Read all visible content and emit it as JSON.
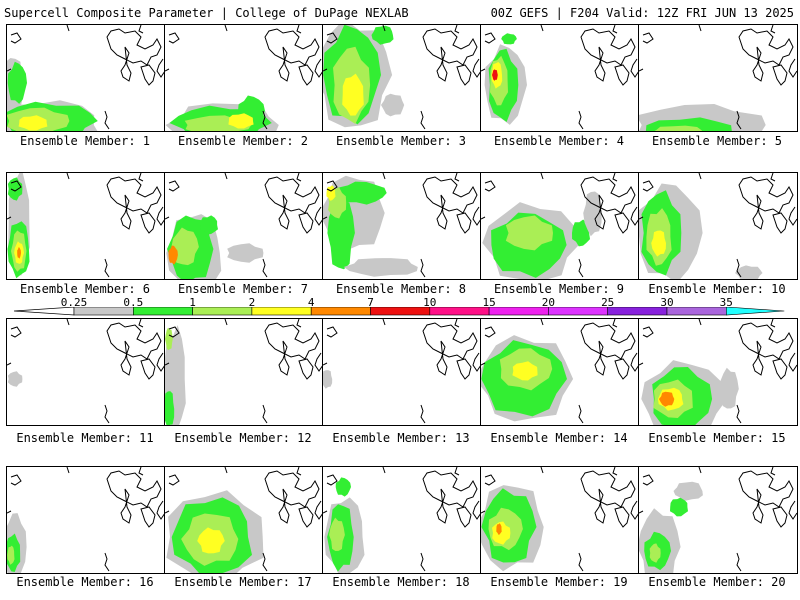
{
  "header": {
    "title_left": "Supercell Composite Parameter | College of DuPage NEXLAB",
    "title_right": "00Z GEFS | F204 Valid: 12Z FRI JUN 13 2025"
  },
  "colors": {
    "c0_25": "#c8c8c8",
    "c0_5": "#33ee33",
    "c1": "#aaee55",
    "c2": "#ffff22",
    "c4": "#ff8800",
    "c7": "#ee1111",
    "c10": "#ff1188",
    "c15": "#ee22ee",
    "c20": "#dd33ff",
    "c25": "#8822dd",
    "c30": "#aa66dd",
    "c35": "#22ffff"
  },
  "legend": {
    "ticks": [
      "0.25",
      "0.5",
      "1",
      "2",
      "4",
      "7",
      "10",
      "15",
      "20",
      "25",
      "30",
      "35"
    ]
  },
  "panels": [
    {
      "label": "Ensemble Member: 1"
    },
    {
      "label": "Ensemble Member: 2"
    },
    {
      "label": "Ensemble Member: 3"
    },
    {
      "label": "Ensemble Member: 4"
    },
    {
      "label": "Ensemble Member: 5"
    },
    {
      "label": "Ensemble Member: 6"
    },
    {
      "label": "Ensemble Member: 7"
    },
    {
      "label": "Ensemble Member: 8"
    },
    {
      "label": "Ensemble Member: 9"
    },
    {
      "label": "Ensemble Member: 10"
    },
    {
      "label": "Ensemble Member: 11"
    },
    {
      "label": "Ensemble Member: 12"
    },
    {
      "label": "Ensemble Member: 13"
    },
    {
      "label": "Ensemble Member: 14"
    },
    {
      "label": "Ensemble Member: 15"
    },
    {
      "label": "Ensemble Member: 16"
    },
    {
      "label": "Ensemble Member: 17"
    },
    {
      "label": "Ensemble Member: 18"
    },
    {
      "label": "Ensemble Member: 19"
    },
    {
      "label": "Ensemble Member: 20"
    }
  ]
}
